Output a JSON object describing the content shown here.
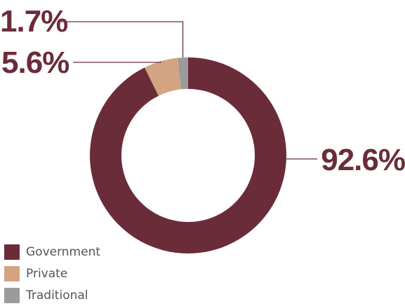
{
  "chart_data": {
    "type": "pie",
    "variant": "donut",
    "categories": [
      "Government",
      "Private",
      "Traditional"
    ],
    "values": [
      92.6,
      5.6,
      1.7
    ],
    "labels": [
      "92.6%",
      "5.6%",
      "1.7%"
    ],
    "colors": [
      "#6b2c3a",
      "#d4a382",
      "#9b9b9b"
    ],
    "label_color": "#6b2c3a",
    "leader_color": "#6b2c3a",
    "legend": {
      "position": "bottom-left",
      "items": [
        {
          "label": "Government",
          "color": "#6b2c3a"
        },
        {
          "label": "Private",
          "color": "#d4a382"
        },
        {
          "label": "Traditional",
          "color": "#9b9b9b"
        }
      ]
    }
  }
}
